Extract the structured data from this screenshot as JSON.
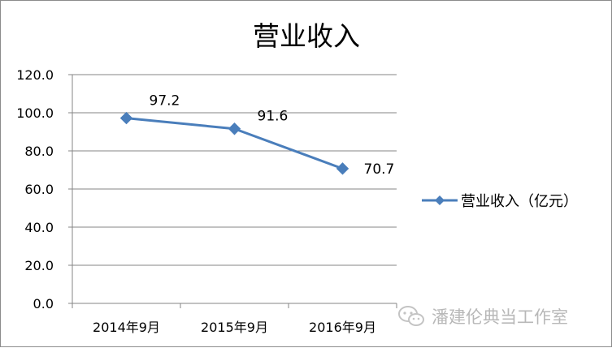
{
  "chart_data": {
    "type": "line",
    "title": "营业收入",
    "categories": [
      "2014年9月",
      "2015年9月",
      "2016年9月"
    ],
    "series": [
      {
        "name": "营业收入（亿元）",
        "values": [
          97.2,
          91.6,
          70.7
        ],
        "color": "#4a7ebb"
      }
    ],
    "data_labels": [
      "97.2",
      "91.6",
      "70.7"
    ],
    "yticks": [
      "0.0",
      "20.0",
      "40.0",
      "60.0",
      "80.0",
      "100.0",
      "120.0"
    ],
    "ylim": [
      0,
      120
    ],
    "ystep": 20,
    "xlabel": "",
    "ylabel": "",
    "grid": true,
    "legend_position": "right",
    "marker": "diamond"
  },
  "watermark": {
    "text": "潘建伦典当工作室",
    "icon": "wechat-icon"
  }
}
